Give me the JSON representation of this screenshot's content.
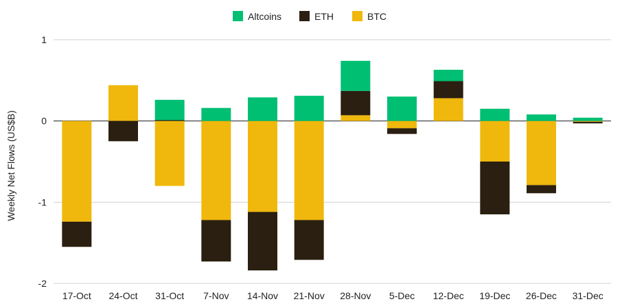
{
  "chart_data": {
    "type": "bar",
    "stacked": true,
    "ylabel": "Weekly Net Flows (US$B)",
    "ylim": [
      -2,
      1
    ],
    "yticks": [
      -2,
      -1,
      0,
      1
    ],
    "grid": true,
    "legend_position": "top",
    "categories": [
      "17-Oct",
      "24-Oct",
      "31-Oct",
      "7-Nov",
      "14-Nov",
      "21-Nov",
      "28-Nov",
      "5-Dec",
      "12-Dec",
      "19-Dec",
      "26-Dec",
      "31-Dec"
    ],
    "series": [
      {
        "name": "Altcoins",
        "color": "#00bf73",
        "values": [
          0,
          0,
          0.25,
          0.16,
          0.29,
          0.31,
          0.37,
          0.3,
          0.14,
          0.15,
          0.08,
          0.04
        ]
      },
      {
        "name": "ETH",
        "color": "#2a1f10",
        "values": [
          -0.31,
          -0.25,
          0.01,
          -0.51,
          -0.72,
          -0.49,
          0.3,
          -0.07,
          0.21,
          -0.65,
          -0.1,
          -0.02
        ]
      },
      {
        "name": "BTC",
        "color": "#f0b80c",
        "values": [
          -1.24,
          0.44,
          -0.8,
          -1.22,
          -1.12,
          -1.22,
          0.07,
          -0.09,
          0.28,
          -0.5,
          -0.79,
          -0.01
        ]
      }
    ]
  }
}
